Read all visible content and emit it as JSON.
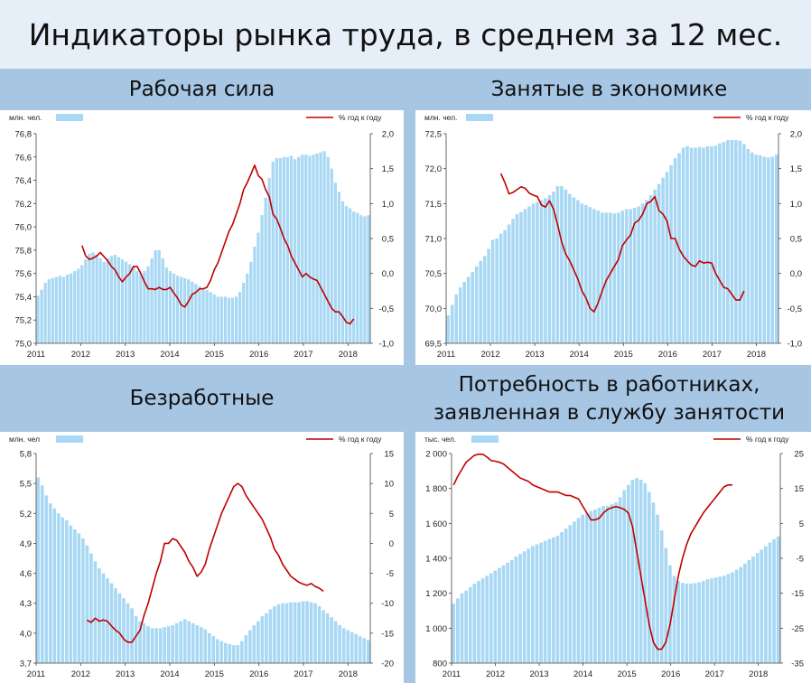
{
  "title": "Индикаторы рынка труда, в среднем за 12 мес.",
  "panels": [
    {
      "title": "Рабочая сила",
      "unit_left": "млн. чел.",
      "unit_right": "% год к году"
    },
    {
      "title": "Занятые в экономике",
      "unit_left": "млн. чел.",
      "unit_right": "% год к году"
    },
    {
      "title": "Безработные",
      "unit_left": "млн. чел",
      "unit_right": "% год к году"
    },
    {
      "title": "Потребность в работниках, заявленная в службу занятости",
      "unit_left": "тыс. чел.",
      "unit_right": "% год к году"
    }
  ],
  "chart_data": [
    {
      "type": "bar",
      "x_ticks": [
        "2011",
        "2012",
        "2013",
        "2014",
        "2015",
        "2016",
        "2017",
        "2018"
      ],
      "y_left": {
        "ticks": [
          "75,0",
          "75,2",
          "75,4",
          "75,6",
          "75,8",
          "76,0",
          "76,2",
          "76,4",
          "76,6",
          "76,8"
        ],
        "min": 75.0,
        "max": 76.8
      },
      "y_right": {
        "ticks": [
          "-1,0",
          "-0,5",
          "0,0",
          "0,5",
          "1,0",
          "1,5",
          "2,0"
        ],
        "min": -1.0,
        "max": 2.0
      },
      "bar_color": "#a8d8f4",
      "line_color": "#c00000",
      "bar_values": [
        75.41,
        75.46,
        75.52,
        75.55,
        75.56,
        75.57,
        75.58,
        75.57,
        75.59,
        75.6,
        75.62,
        75.64,
        75.67,
        75.72,
        75.77,
        75.78,
        75.76,
        75.73,
        75.7,
        75.73,
        75.75,
        75.76,
        75.74,
        75.72,
        75.7,
        75.68,
        75.66,
        75.62,
        75.6,
        75.62,
        75.66,
        75.73,
        75.8,
        75.8,
        75.73,
        75.65,
        75.62,
        75.6,
        75.58,
        75.57,
        75.56,
        75.55,
        75.53,
        75.51,
        75.49,
        75.47,
        75.46,
        75.44,
        75.42,
        75.4,
        75.4,
        75.4,
        75.39,
        75.39,
        75.4,
        75.44,
        75.52,
        75.6,
        75.7,
        75.83,
        75.95,
        76.1,
        76.25,
        76.42,
        76.56,
        76.59,
        76.59,
        76.6,
        76.6,
        76.61,
        76.58,
        76.6,
        76.62,
        76.62,
        76.61,
        76.62,
        76.63,
        76.64,
        76.65,
        76.6,
        76.5,
        76.38,
        76.3,
        76.22,
        76.18,
        76.16,
        76.13,
        76.12,
        76.1,
        76.09,
        76.1
      ],
      "line_x_start": 12,
      "line_values": [
        0.4,
        0.25,
        0.2,
        0.22,
        0.25,
        0.3,
        0.24,
        0.18,
        0.1,
        0.05,
        -0.05,
        -0.12,
        -0.05,
        0.0,
        0.1,
        0.1,
        0.0,
        -0.12,
        -0.22,
        -0.22,
        -0.23,
        -0.2,
        -0.23,
        -0.23,
        -0.2,
        -0.28,
        -0.35,
        -0.45,
        -0.48,
        -0.4,
        -0.3,
        -0.27,
        -0.22,
        -0.22,
        -0.2,
        -0.1,
        0.05,
        0.15,
        0.3,
        0.45,
        0.6,
        0.7,
        0.85,
        1.0,
        1.2,
        1.3,
        1.42,
        1.55,
        1.4,
        1.35,
        1.2,
        1.1,
        0.85,
        0.78,
        0.65,
        0.5,
        0.4,
        0.25,
        0.15,
        0.05,
        -0.05,
        0.0,
        -0.05,
        -0.08,
        -0.1,
        -0.2,
        -0.3,
        -0.4,
        -0.5,
        -0.55,
        -0.55,
        -0.62,
        -0.7,
        -0.72,
        -0.65
      ]
    },
    {
      "type": "bar",
      "x_ticks": [
        "2011",
        "2012",
        "2013",
        "2014",
        "2015",
        "2016",
        "2017",
        "2018"
      ],
      "y_left": {
        "ticks": [
          "69,5",
          "70,0",
          "70,5",
          "71,0",
          "71,5",
          "72,0",
          "72,5"
        ],
        "min": 69.5,
        "max": 72.5
      },
      "y_right": {
        "ticks": [
          "-1,0",
          "-0,5",
          "0,0",
          "0,5",
          "1,0",
          "1,5",
          "2,0"
        ],
        "min": -1.0,
        "max": 2.0
      },
      "bar_color": "#a8d8f4",
      "line_color": "#c00000",
      "bar_values": [
        69.9,
        70.05,
        70.2,
        70.3,
        70.38,
        70.45,
        70.52,
        70.6,
        70.68,
        70.75,
        70.85,
        70.98,
        71.0,
        71.07,
        71.12,
        71.2,
        71.28,
        71.35,
        71.38,
        71.42,
        71.46,
        71.5,
        71.52,
        71.55,
        71.58,
        71.62,
        71.67,
        71.75,
        71.75,
        71.7,
        71.64,
        71.59,
        71.55,
        71.5,
        71.48,
        71.45,
        71.42,
        71.4,
        71.37,
        71.37,
        71.37,
        71.36,
        71.37,
        71.4,
        71.42,
        71.42,
        71.44,
        71.46,
        71.5,
        71.55,
        71.62,
        71.7,
        71.78,
        71.87,
        71.95,
        72.05,
        72.15,
        72.22,
        72.3,
        72.32,
        72.3,
        72.3,
        72.31,
        72.3,
        72.32,
        72.32,
        72.33,
        72.36,
        72.38,
        72.41,
        72.41,
        72.41,
        72.4,
        72.35,
        72.28,
        72.23,
        72.2,
        72.19,
        72.17,
        72.16,
        72.17,
        72.2
      ],
      "line_x_start": 13,
      "line_values": [
        1.43,
        1.3,
        1.14,
        1.16,
        1.2,
        1.24,
        1.22,
        1.15,
        1.12,
        1.1,
        0.98,
        0.95,
        1.04,
        0.92,
        0.7,
        0.45,
        0.28,
        0.18,
        0.05,
        -0.08,
        -0.25,
        -0.35,
        -0.5,
        -0.55,
        -0.42,
        -0.25,
        -0.1,
        0.0,
        0.1,
        0.2,
        0.4,
        0.48,
        0.55,
        0.72,
        0.76,
        0.85,
        1.0,
        1.03,
        1.1,
        0.9,
        0.85,
        0.75,
        0.5,
        0.5,
        0.35,
        0.25,
        0.18,
        0.12,
        0.1,
        0.18,
        0.15,
        0.16,
        0.15,
        0.0,
        -0.1,
        -0.2,
        -0.22,
        -0.3,
        -0.38,
        -0.38,
        -0.25
      ]
    },
    {
      "type": "bar",
      "x_ticks": [
        "2011",
        "2012",
        "2013",
        "2014",
        "2015",
        "2016",
        "2017",
        "2018"
      ],
      "y_left": {
        "ticks": [
          "3,7",
          "4,0",
          "4,3",
          "4,6",
          "4,9",
          "5,2",
          "5,5",
          "5,8"
        ],
        "min": 3.7,
        "max": 5.8
      },
      "y_right": {
        "ticks": [
          "-20",
          "-15",
          "-10",
          "-5",
          "0",
          "5",
          "10",
          "15"
        ],
        "min": -20,
        "max": 15
      },
      "bar_color": "#a8d8f4",
      "line_color": "#c00000",
      "bar_values": [
        5.56,
        5.48,
        5.38,
        5.3,
        5.25,
        5.2,
        5.16,
        5.13,
        5.08,
        5.04,
        5.0,
        4.95,
        4.88,
        4.8,
        4.72,
        4.65,
        4.6,
        4.55,
        4.5,
        4.45,
        4.4,
        4.35,
        4.3,
        4.25,
        4.17,
        4.12,
        4.1,
        4.07,
        4.05,
        4.05,
        4.05,
        4.06,
        4.07,
        4.08,
        4.1,
        4.12,
        4.14,
        4.12,
        4.1,
        4.08,
        4.06,
        4.04,
        4.0,
        3.97,
        3.94,
        3.92,
        3.9,
        3.89,
        3.88,
        3.88,
        3.92,
        3.98,
        4.03,
        4.08,
        4.12,
        4.17,
        4.2,
        4.24,
        4.27,
        4.29,
        4.3,
        4.3,
        4.31,
        4.31,
        4.31,
        4.32,
        4.32,
        4.31,
        4.3,
        4.27,
        4.23,
        4.2,
        4.16,
        4.12,
        4.08,
        4.05,
        4.03,
        4.01,
        3.99,
        3.97,
        3.95,
        3.93
      ],
      "line_x_start": 12,
      "line_values": [
        -12.8,
        -13.2,
        -12.5,
        -13,
        -12.8,
        -13,
        -13.8,
        -14.5,
        -15,
        -16,
        -16.5,
        -16.5,
        -15.5,
        -14.5,
        -12,
        -10,
        -7.5,
        -5,
        -3,
        0,
        0,
        0.8,
        0.5,
        -0.5,
        -1.5,
        -3,
        -4,
        -5.5,
        -4.8,
        -3.5,
        -1,
        1,
        3,
        5,
        6.5,
        8,
        9.5,
        10,
        9.5,
        8,
        7,
        6,
        5,
        4,
        2.5,
        1,
        -1,
        -2,
        -3.5,
        -4.5,
        -5.5,
        -6,
        -6.5,
        -6.8,
        -7,
        -6.7,
        -7.2,
        -7.5,
        -8
      ]
    },
    {
      "type": "bar",
      "x_ticks": [
        "2011",
        "2012",
        "2013",
        "2014",
        "2015",
        "2016",
        "2017",
        "2018"
      ],
      "y_left": {
        "ticks": [
          "800",
          "1 000",
          "1 200",
          "1 400",
          "1 600",
          "1 800",
          "2 000"
        ],
        "min": 800,
        "max": 2000
      },
      "y_right": {
        "ticks": [
          "-35",
          "-25",
          "-15",
          "-5",
          "5",
          "15",
          "25"
        ],
        "min": -35,
        "max": 25
      },
      "bar_color": "#a8d8f4",
      "line_color": "#c00000",
      "bar_values": [
        1140,
        1170,
        1200,
        1215,
        1235,
        1255,
        1270,
        1285,
        1300,
        1315,
        1330,
        1345,
        1360,
        1375,
        1390,
        1410,
        1425,
        1440,
        1455,
        1470,
        1480,
        1490,
        1500,
        1510,
        1520,
        1530,
        1550,
        1570,
        1590,
        1610,
        1630,
        1650,
        1660,
        1670,
        1680,
        1690,
        1700,
        1700,
        1710,
        1720,
        1750,
        1790,
        1820,
        1850,
        1860,
        1850,
        1830,
        1780,
        1720,
        1650,
        1560,
        1460,
        1360,
        1300,
        1270,
        1260,
        1255,
        1255,
        1258,
        1262,
        1270,
        1280,
        1285,
        1290,
        1295,
        1300,
        1310,
        1320,
        1335,
        1350,
        1370,
        1390,
        1410,
        1430,
        1450,
        1470,
        1490,
        1510,
        1525
      ],
      "line_x_start": 0,
      "line_values": [
        16,
        18.5,
        20.5,
        22.5,
        23.5,
        24.5,
        24.8,
        24.8,
        24,
        23,
        22.8,
        22.5,
        22,
        21,
        20,
        19,
        18,
        17.5,
        17,
        16,
        15.5,
        15,
        14.5,
        14,
        14,
        14,
        13.5,
        13,
        13,
        12.5,
        12,
        10,
        8,
        6,
        6,
        6.5,
        8,
        9,
        9.5,
        9.8,
        9.5,
        9,
        8,
        4,
        -3,
        -10,
        -17,
        -24,
        -29,
        -31,
        -31,
        -29,
        -24,
        -17,
        -10,
        -5,
        -1,
        2,
        4,
        6,
        8,
        9.5,
        11,
        12.5,
        14,
        15.5,
        16,
        16
      ]
    }
  ]
}
